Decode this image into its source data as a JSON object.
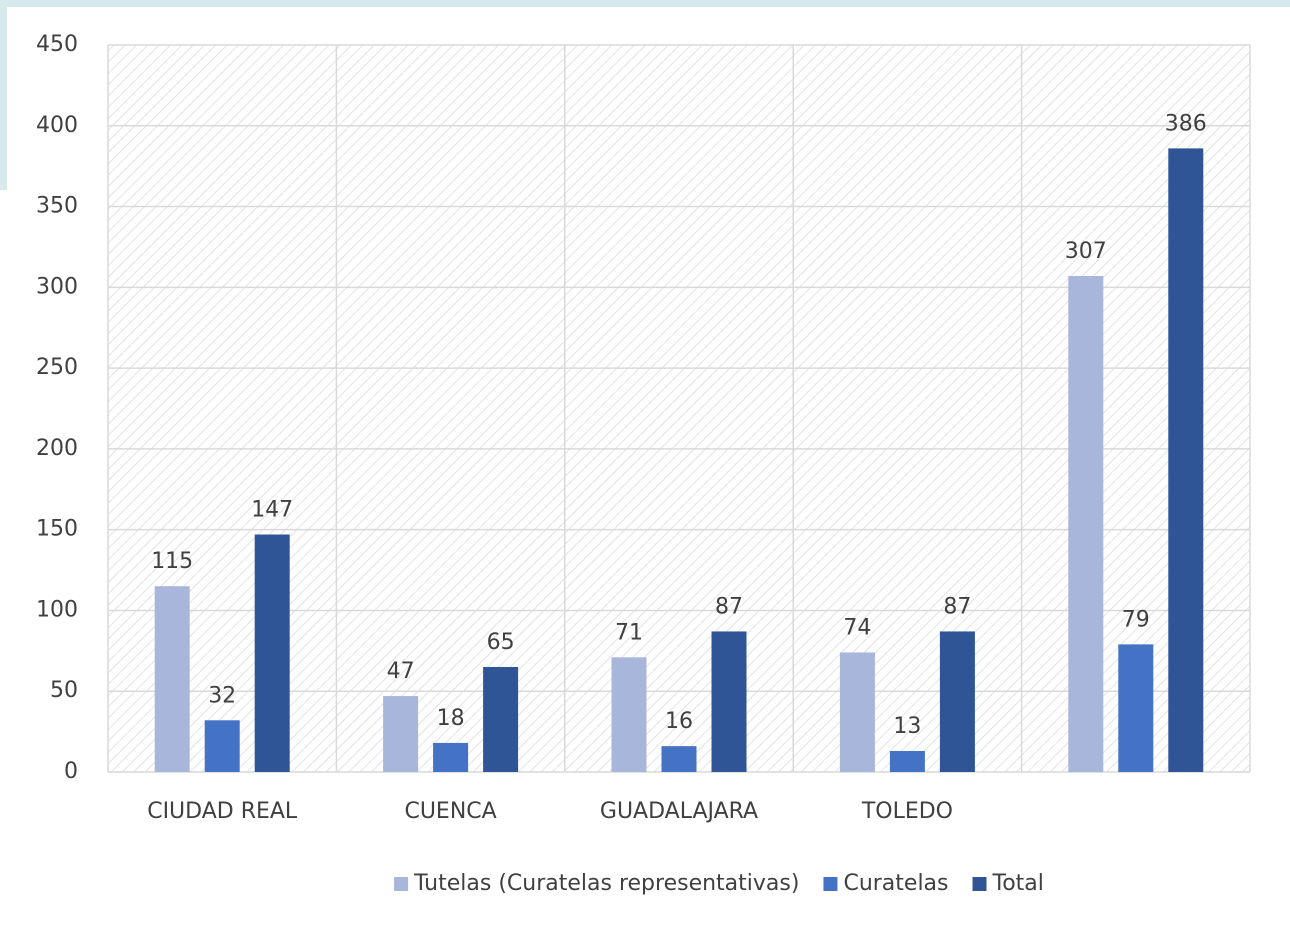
{
  "chart_data": {
    "type": "bar",
    "categories": [
      "CIUDAD REAL",
      "CUENCA",
      "GUADALAJARA",
      "TOLEDO",
      null
    ],
    "series": [
      {
        "name": "Tutelas (Curatelas representativas)",
        "color": "#a9b6dc",
        "values": [
          115,
          47,
          71,
          74,
          307
        ]
      },
      {
        "name": "Curatelas",
        "color": "#4472c4",
        "values": [
          32,
          18,
          16,
          13,
          79
        ]
      },
      {
        "name": "Total",
        "color": "#2f5597",
        "values": [
          147,
          65,
          87,
          87,
          386
        ]
      }
    ],
    "ylim": [
      0,
      450
    ],
    "yticks": [
      0,
      50,
      100,
      150,
      200,
      250,
      300,
      350,
      400,
      450
    ],
    "grid": true,
    "legend": "bottom"
  }
}
